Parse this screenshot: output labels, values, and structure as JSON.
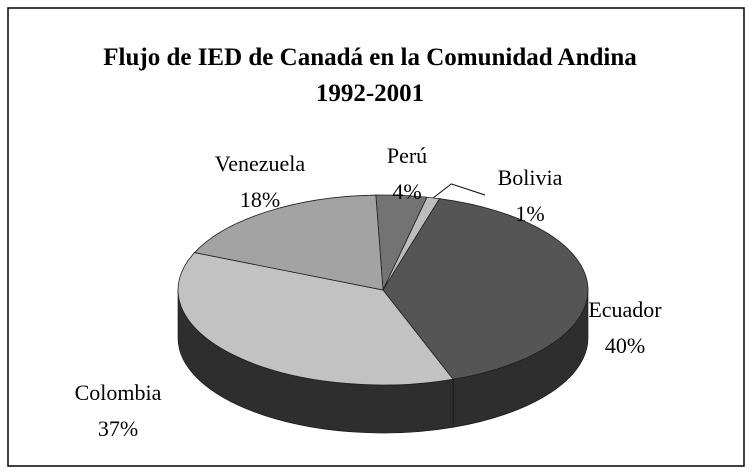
{
  "chart_data": {
    "type": "pie",
    "title": "Flujo de IED de Canadá en la Comunidad Andina 1992-2001",
    "categories": [
      "Perú",
      "Bolivia",
      "Ecuador",
      "Colombia",
      "Venezuela"
    ],
    "values": [
      4,
      1,
      40,
      37,
      18
    ],
    "value_labels": [
      "4%",
      "1%",
      "40%",
      "37%",
      "18%"
    ],
    "colors": [
      "#737373",
      "#bdbdbd",
      "#555555",
      "#c2c2c2",
      "#a3a3a3"
    ],
    "three_d": true
  }
}
